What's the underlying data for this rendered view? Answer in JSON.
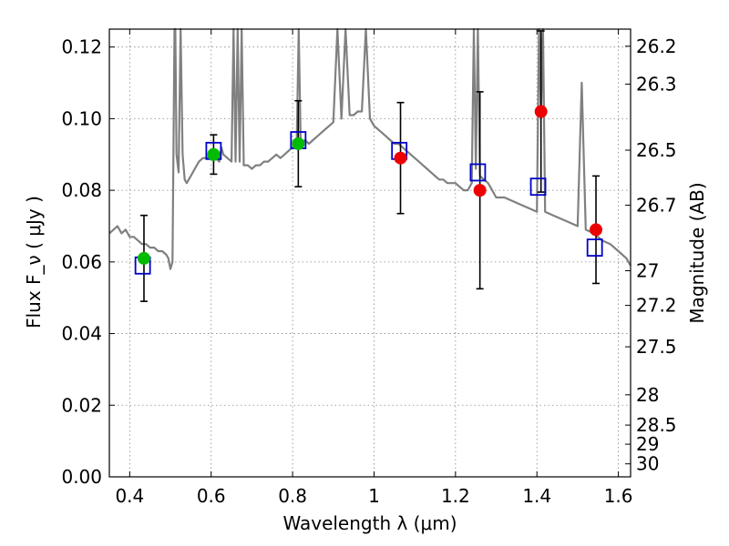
{
  "chart_data": {
    "type": "scatter",
    "title": "",
    "xlabel": "Wavelength  λ (μm)",
    "ylabel": "Flux  F_ν  ( μJy )",
    "y2label": "Magnitude (AB)",
    "xlim": [
      0.35,
      1.63
    ],
    "ylim": [
      0.0,
      0.125
    ],
    "grid": true,
    "x_ticks": [
      {
        "value": 0.4,
        "label": "0.4"
      },
      {
        "value": 0.6,
        "label": "0.6"
      },
      {
        "value": 0.8,
        "label": "0.8"
      },
      {
        "value": 1.0,
        "label": "1"
      },
      {
        "value": 1.2,
        "label": "1.2"
      },
      {
        "value": 1.4,
        "label": "1.4"
      },
      {
        "value": 1.6,
        "label": "1.6"
      }
    ],
    "y_ticks": [
      {
        "value": 0.0,
        "label": "0.00"
      },
      {
        "value": 0.02,
        "label": "0.02"
      },
      {
        "value": 0.04,
        "label": "0.04"
      },
      {
        "value": 0.06,
        "label": "0.06"
      },
      {
        "value": 0.08,
        "label": "0.08"
      },
      {
        "value": 0.1,
        "label": "0.10"
      },
      {
        "value": 0.12,
        "label": "0.12"
      }
    ],
    "y2_ticks": [
      {
        "value": 26.2,
        "label": "26.2"
      },
      {
        "value": 26.3,
        "label": "26.3"
      },
      {
        "value": 26.5,
        "label": "26.5"
      },
      {
        "value": 26.7,
        "label": "26.7"
      },
      {
        "value": 27.0,
        "label": "27"
      },
      {
        "value": 27.2,
        "label": "27.2"
      },
      {
        "value": 27.5,
        "label": "27.5"
      },
      {
        "value": 28.0,
        "label": "28"
      },
      {
        "value": 28.5,
        "label": "28.5"
      },
      {
        "value": 29.0,
        "label": "29"
      },
      {
        "value": 30.0,
        "label": "30"
      }
    ],
    "colors": {
      "spectrum": "#808080",
      "green_points": "#00bb00",
      "red_points": "#ee0000",
      "model_squares": "#0000cc",
      "error_bars": "#000000",
      "grid": "#888888"
    },
    "spectrum": {
      "x": [
        0.35,
        0.36,
        0.37,
        0.38,
        0.39,
        0.4,
        0.41,
        0.42,
        0.43,
        0.44,
        0.45,
        0.46,
        0.47,
        0.48,
        0.49,
        0.495,
        0.5,
        0.505,
        0.51,
        0.512,
        0.515,
        0.52,
        0.525,
        0.53,
        0.535,
        0.54,
        0.545,
        0.55,
        0.56,
        0.57,
        0.58,
        0.59,
        0.6,
        0.61,
        0.62,
        0.625,
        0.63,
        0.64,
        0.65,
        0.655,
        0.66,
        0.665,
        0.67,
        0.675,
        0.68,
        0.69,
        0.7,
        0.71,
        0.72,
        0.73,
        0.74,
        0.75,
        0.76,
        0.77,
        0.78,
        0.79,
        0.8,
        0.81,
        0.815,
        0.82,
        0.83,
        0.84,
        0.85,
        0.86,
        0.87,
        0.88,
        0.89,
        0.9,
        0.91,
        0.92,
        0.93,
        0.94,
        0.95,
        0.96,
        0.97,
        0.98,
        0.99,
        1.0,
        1.01,
        1.02,
        1.03,
        1.04,
        1.05,
        1.06,
        1.07,
        1.08,
        1.09,
        1.1,
        1.11,
        1.12,
        1.13,
        1.14,
        1.15,
        1.16,
        1.17,
        1.18,
        1.19,
        1.2,
        1.21,
        1.22,
        1.23,
        1.24,
        1.245,
        1.25,
        1.255,
        1.26,
        1.27,
        1.28,
        1.29,
        1.3,
        1.32,
        1.34,
        1.36,
        1.38,
        1.4,
        1.405,
        1.41,
        1.415,
        1.42,
        1.44,
        1.46,
        1.48,
        1.5,
        1.51,
        1.52,
        1.54,
        1.56,
        1.58,
        1.6,
        1.62,
        1.63
      ],
      "y": [
        0.068,
        0.069,
        0.07,
        0.068,
        0.069,
        0.067,
        0.067,
        0.066,
        0.065,
        0.065,
        0.064,
        0.064,
        0.063,
        0.063,
        0.062,
        0.061,
        0.058,
        0.06,
        0.125,
        0.125,
        0.09,
        0.085,
        0.125,
        0.09,
        0.083,
        0.082,
        0.083,
        0.084,
        0.086,
        0.088,
        0.089,
        0.089,
        0.09,
        0.089,
        0.088,
        0.092,
        0.09,
        0.089,
        0.088,
        0.125,
        0.088,
        0.125,
        0.088,
        0.125,
        0.087,
        0.087,
        0.086,
        0.087,
        0.087,
        0.088,
        0.088,
        0.089,
        0.09,
        0.089,
        0.09,
        0.091,
        0.092,
        0.093,
        0.125,
        0.093,
        0.094,
        0.093,
        0.094,
        0.095,
        0.096,
        0.097,
        0.098,
        0.099,
        0.125,
        0.1,
        0.125,
        0.101,
        0.101,
        0.102,
        0.102,
        0.125,
        0.1,
        0.098,
        0.097,
        0.096,
        0.095,
        0.094,
        0.093,
        0.093,
        0.092,
        0.091,
        0.09,
        0.089,
        0.088,
        0.087,
        0.086,
        0.085,
        0.084,
        0.083,
        0.083,
        0.082,
        0.082,
        0.082,
        0.081,
        0.08,
        0.08,
        0.082,
        0.125,
        0.086,
        0.125,
        0.084,
        0.083,
        0.082,
        0.08,
        0.078,
        0.078,
        0.077,
        0.076,
        0.075,
        0.074,
        0.125,
        0.1,
        0.125,
        0.074,
        0.073,
        0.072,
        0.071,
        0.07,
        0.11,
        0.069,
        0.068,
        0.066,
        0.065,
        0.063,
        0.061,
        0.059
      ]
    },
    "photometry": [
      {
        "x": 0.435,
        "y": 0.061,
        "err": 0.012,
        "color": "green"
      },
      {
        "x": 0.606,
        "y": 0.09,
        "err": 0.0055,
        "color": "green"
      },
      {
        "x": 0.814,
        "y": 0.093,
        "err": 0.012,
        "color": "green"
      },
      {
        "x": 1.065,
        "y": 0.089,
        "err": 0.0155,
        "color": "red"
      },
      {
        "x": 1.26,
        "y": 0.08,
        "err": 0.0275,
        "color": "red"
      },
      {
        "x": 1.41,
        "y": 0.102,
        "err": 0.0225,
        "color": "red"
      },
      {
        "x": 1.545,
        "y": 0.069,
        "err": 0.015,
        "color": "red"
      }
    ],
    "model": [
      {
        "x": 0.432,
        "y": 0.059
      },
      {
        "x": 0.606,
        "y": 0.091
      },
      {
        "x": 0.814,
        "y": 0.094
      },
      {
        "x": 1.062,
        "y": 0.091
      },
      {
        "x": 1.255,
        "y": 0.085
      },
      {
        "x": 1.403,
        "y": 0.081
      },
      {
        "x": 1.542,
        "y": 0.064
      }
    ]
  }
}
